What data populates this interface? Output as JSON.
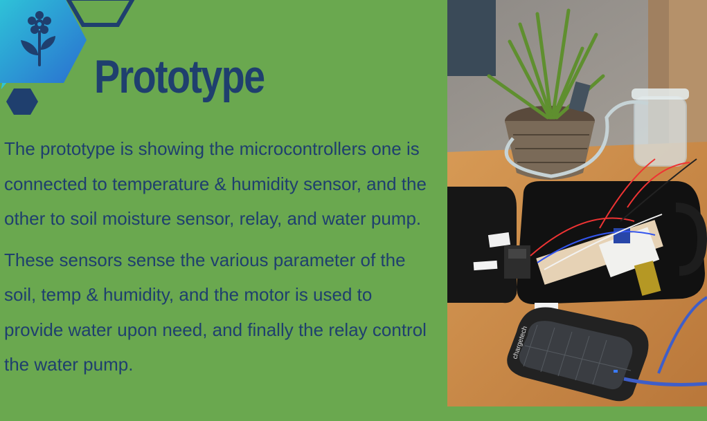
{
  "slide": {
    "title": "Prototype",
    "paragraphs": [
      "The prototype is showing the microcontrollers one is connected to temperature & humidity sensor, and the other to soil moisture sensor, relay, and water pump.",
      "These sensors sense the various parameter of the soil, temp & humidity, and the motor is used to provide water upon need, and finally the relay control the water pump."
    ]
  },
  "photo": {
    "power_bank_brand": "chargetech"
  },
  "colors": {
    "background": "#6aa84f",
    "text": "#1f3f6e",
    "hexagon_fill_start": "#2ec4d8",
    "hexagon_fill_end": "#2a6fd0",
    "hexagon_dark": "#1f3f6e"
  },
  "icons": {
    "decor": "flower-icon"
  }
}
